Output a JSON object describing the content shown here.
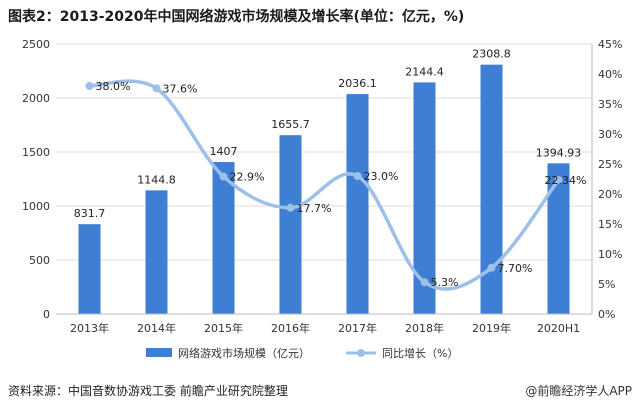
{
  "title": "图表2：2013-2020年中国网络游戏市场规模及增长率(单位：亿元，%)",
  "source": "资料来源：中国音数协游戏工委 前瞻产业研究院整理",
  "watermark": "@前瞻经济学人APP",
  "colors": {
    "bar": "#3f7fd3",
    "line": "#9cc0e8",
    "grid": "#dddddd",
    "axis": "#bbbbbb"
  },
  "chart_data": {
    "type": "bar",
    "categories": [
      "2013年",
      "2014年",
      "2015年",
      "2016年",
      "2017年",
      "2018年",
      "2019年",
      "2020H1"
    ],
    "series": [
      {
        "name": "网络游戏市场规模（亿元）",
        "type": "bar",
        "axis": "left",
        "values": [
          831.7,
          1144.8,
          1407,
          1655.7,
          2036.1,
          2144.4,
          2308.8,
          1394.93
        ],
        "labels": [
          "831.7",
          "1144.8",
          "1407",
          "1655.7",
          "2036.1",
          "2144.4",
          "2308.8",
          "1394.93"
        ]
      },
      {
        "name": "同比增长（%）",
        "type": "line",
        "axis": "right",
        "values": [
          38.0,
          37.6,
          22.9,
          17.7,
          23.0,
          5.3,
          7.7,
          22.34
        ],
        "labels": [
          "38.0%",
          "37.6%",
          "22.9%",
          "17.7%",
          "23.0%",
          "5.3%",
          "7.70%",
          "22.34%"
        ]
      }
    ],
    "yleft": {
      "min": 0,
      "max": 2500,
      "ticks": [
        "0",
        "500",
        "1000",
        "1500",
        "2000",
        "2500"
      ]
    },
    "yright": {
      "min": 0,
      "max": 45,
      "ticks": [
        "0%",
        "5%",
        "10%",
        "15%",
        "20%",
        "25%",
        "30%",
        "35%",
        "40%",
        "45%"
      ]
    },
    "legend_position": "bottom",
    "grid": true
  }
}
